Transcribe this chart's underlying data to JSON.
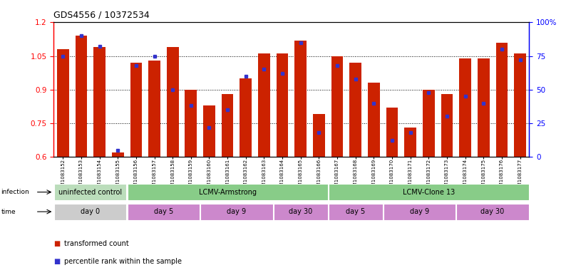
{
  "title": "GDS4556 / 10372534",
  "samples": [
    "GSM1083152",
    "GSM1083153",
    "GSM1083154",
    "GSM1083155",
    "GSM1083156",
    "GSM1083157",
    "GSM1083158",
    "GSM1083159",
    "GSM1083160",
    "GSM1083161",
    "GSM1083162",
    "GSM1083163",
    "GSM1083164",
    "GSM1083165",
    "GSM1083166",
    "GSM1083167",
    "GSM1083168",
    "GSM1083169",
    "GSM1083170",
    "GSM1083171",
    "GSM1083172",
    "GSM1083173",
    "GSM1083174",
    "GSM1083175",
    "GSM1083176",
    "GSM1083177"
  ],
  "red_values": [
    1.08,
    1.14,
    1.09,
    0.62,
    1.02,
    1.03,
    1.09,
    0.9,
    0.83,
    0.88,
    0.95,
    1.06,
    1.06,
    1.12,
    0.79,
    1.05,
    1.02,
    0.93,
    0.82,
    0.73,
    0.9,
    0.88,
    1.04,
    1.04,
    1.11,
    1.06
  ],
  "blue_values": [
    75,
    90,
    82,
    5,
    68,
    75,
    50,
    38,
    22,
    35,
    60,
    65,
    62,
    85,
    18,
    68,
    58,
    40,
    12,
    18,
    48,
    30,
    45,
    40,
    80,
    72
  ],
  "ylim_left": [
    0.6,
    1.2
  ],
  "ylim_right": [
    0,
    100
  ],
  "yticks_left": [
    0.6,
    0.75,
    0.9,
    1.05,
    1.2
  ],
  "yticks_right": [
    0,
    25,
    50,
    75,
    100
  ],
  "ytick_labels_left": [
    "0.6",
    "0.75",
    "0.9",
    "1.05",
    "1.2"
  ],
  "ytick_labels_right": [
    "0",
    "25",
    "50",
    "75",
    "100%"
  ],
  "bar_color": "#cc2200",
  "blue_color": "#3333cc",
  "bg_color": "#ffffff",
  "infection_row": [
    {
      "label": "uninfected control",
      "start": 0,
      "end": 3,
      "color": "#bbddbb"
    },
    {
      "label": "LCMV-Armstrong",
      "start": 4,
      "end": 14,
      "color": "#88cc88"
    },
    {
      "label": "LCMV-Clone 13",
      "start": 15,
      "end": 25,
      "color": "#88cc88"
    }
  ],
  "time_row": [
    {
      "label": "day 0",
      "start": 0,
      "end": 3,
      "color": "#cccccc"
    },
    {
      "label": "day 5",
      "start": 4,
      "end": 7,
      "color": "#cc88cc"
    },
    {
      "label": "day 9",
      "start": 8,
      "end": 11,
      "color": "#cc88cc"
    },
    {
      "label": "day 30",
      "start": 12,
      "end": 14,
      "color": "#cc88cc"
    },
    {
      "label": "day 5",
      "start": 15,
      "end": 17,
      "color": "#cc88cc"
    },
    {
      "label": "day 9",
      "start": 18,
      "end": 21,
      "color": "#cc88cc"
    },
    {
      "label": "day 30",
      "start": 22,
      "end": 25,
      "color": "#cc88cc"
    }
  ],
  "legend_items": [
    {
      "color": "#cc2200",
      "label": "transformed count"
    },
    {
      "color": "#3333cc",
      "label": "percentile rank within the sample"
    }
  ]
}
